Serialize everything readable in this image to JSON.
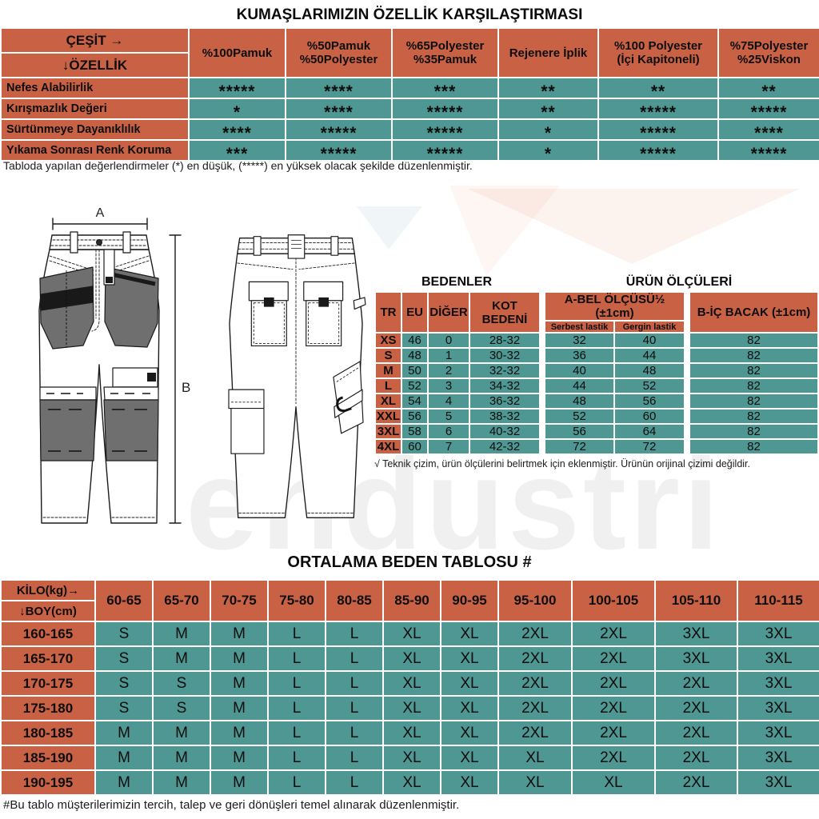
{
  "colors": {
    "orange": "#c96245",
    "teal": "#4e9792",
    "pocket_gray": "#6f6f6f"
  },
  "fabric_table": {
    "title": "KUMAŞLARIMIZIN ÖZELLİK KARŞILAŞTIRMASI",
    "corner_top": "ÇEŞİT →",
    "corner_bottom": "↓ÖZELLİK",
    "columns": [
      "%100Pamuk",
      "%50Pamuk\n%50Polyester",
      "%65Polyester\n%35Pamuk",
      "Rejenere İplik",
      "%100 Polyester\n(İçi Kapitoneli)",
      "%75Polyester\n%25Viskon"
    ],
    "rows": [
      {
        "label": "Nefes Alabilirlik",
        "values": [
          "*****",
          "****",
          "***",
          "**",
          "**",
          "**"
        ]
      },
      {
        "label": "Kırışmazlık Değeri",
        "values": [
          "*",
          "****",
          "*****",
          "**",
          "*****",
          "*****"
        ]
      },
      {
        "label": "Sürtünmeye Dayanıklılık",
        "values": [
          "****",
          "*****",
          "*****",
          "*",
          "*****",
          "****"
        ]
      },
      {
        "label": "Yıkama Sonrası Renk Koruma",
        "values": [
          "***",
          "*****",
          "*****",
          "*",
          "*****",
          "*****"
        ]
      }
    ],
    "note": "Tabloda yapılan değerlendirmeler (*) en düşük, (*****) en yüksek olacak şekilde düzenlenmiştir."
  },
  "size_table": {
    "title_left": "BEDENLER",
    "title_right": "ÜRÜN ÖLÇÜLERİ",
    "headers": [
      "TR",
      "EU",
      "DİĞER",
      "KOT BEDENİ"
    ],
    "group_a_header": "A-BEL ÖLÇÜSÜ½ (±1cm)",
    "group_a_sub": [
      "Serbest lastik",
      "Gergin lastik"
    ],
    "group_b_header": "B-İÇ BACAK (±1cm)",
    "rows": [
      [
        "XS",
        "46",
        "0",
        "28-32",
        "32",
        "40",
        "82"
      ],
      [
        "S",
        "48",
        "1",
        "30-32",
        "36",
        "44",
        "82"
      ],
      [
        "M",
        "50",
        "2",
        "32-32",
        "40",
        "48",
        "82"
      ],
      [
        "L",
        "52",
        "3",
        "34-32",
        "44",
        "52",
        "82"
      ],
      [
        "XL",
        "54",
        "4",
        "36-32",
        "48",
        "56",
        "82"
      ],
      [
        "XXL",
        "56",
        "5",
        "38-32",
        "52",
        "60",
        "82"
      ],
      [
        "3XL",
        "58",
        "6",
        "40-32",
        "56",
        "64",
        "82"
      ],
      [
        "4XL",
        "60",
        "7",
        "42-32",
        "72",
        "72",
        "82"
      ]
    ],
    "note": "√ Teknik çizim, ürün ölçülerini belirtmek için eklenmiştir. Ürünün orijinal çizimi değildir."
  },
  "avg_table": {
    "title": "ORTALAMA BEDEN TABLOSU #",
    "corner_top": "KİLO(kg)→",
    "corner_bottom": "↓BOY(cm)",
    "columns": [
      "60-65",
      "65-70",
      "70-75",
      "75-80",
      "80-85",
      "85-90",
      "90-95",
      "95-100",
      "100-105",
      "105-110",
      "110-115"
    ],
    "rows": [
      {
        "label": "160-165",
        "values": [
          "S",
          "M",
          "M",
          "L",
          "L",
          "XL",
          "XL",
          "2XL",
          "2XL",
          "3XL",
          "3XL"
        ]
      },
      {
        "label": "165-170",
        "values": [
          "S",
          "M",
          "M",
          "L",
          "L",
          "XL",
          "XL",
          "2XL",
          "2XL",
          "3XL",
          "3XL"
        ]
      },
      {
        "label": "170-175",
        "values": [
          "S",
          "S",
          "M",
          "L",
          "L",
          "XL",
          "XL",
          "2XL",
          "2XL",
          "2XL",
          "3XL"
        ]
      },
      {
        "label": "175-180",
        "values": [
          "S",
          "S",
          "M",
          "L",
          "L",
          "XL",
          "XL",
          "2XL",
          "2XL",
          "2XL",
          "3XL"
        ]
      },
      {
        "label": "180-185",
        "values": [
          "M",
          "M",
          "M",
          "L",
          "L",
          "XL",
          "XL",
          "2XL",
          "2XL",
          "2XL",
          "3XL"
        ]
      },
      {
        "label": "185-190",
        "values": [
          "M",
          "M",
          "M",
          "L",
          "L",
          "XL",
          "XL",
          "XL",
          "2XL",
          "2XL",
          "3XL"
        ]
      },
      {
        "label": "190-195",
        "values": [
          "M",
          "M",
          "M",
          "L",
          "L",
          "XL",
          "XL",
          "XL",
          "XL",
          "2XL",
          "3XL"
        ]
      }
    ],
    "note": "#Bu tablo müşterilerimizin tercih, talep ve geri dönüşleri temel alınarak düzenlenmiştir."
  },
  "diagram": {
    "label_a": "A",
    "label_b": "B",
    "watermark": "endustri"
  }
}
